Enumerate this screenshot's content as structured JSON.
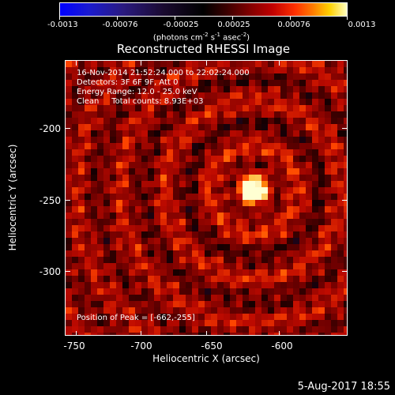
{
  "colorbar": {
    "tick_labels": [
      "-0.0013",
      "-0.00076",
      "-0.00025",
      "0.00025",
      "0.00076",
      "0.0013"
    ],
    "units_label_main": "(photons cm",
    "units_sup1": "-2",
    "units_mid1": " s",
    "units_sup2": "-1",
    "units_mid2": " asec",
    "units_sup3": "-2",
    "units_end": ")"
  },
  "title": "Reconstructed RHESSI Image",
  "info": {
    "time_range": "16-Nov-2014 21:52:24.000 to 22:02:24.000",
    "detectors": "Detectors: 3F 6F 9F, Att 0",
    "energy_range": "Energy Range: 12.0 - 25.0 keV",
    "clean_counts": "Clean     Total counts: 8.93E+03",
    "peak_position": "Position of Peak = [-662,-255]"
  },
  "x_axis": {
    "title": "Heliocentric X (arcsec)",
    "tick_labels": [
      "-750",
      "-700",
      "-650",
      "-600"
    ]
  },
  "y_axis": {
    "title": "Heliocentric Y (arcsec)",
    "tick_labels": [
      "-200",
      "-250",
      "-300"
    ]
  },
  "footer": {
    "timestamp": "5-Aug-2017 18:55"
  },
  "chart_data": {
    "type": "heatmap",
    "title": "Reconstructed RHESSI Image",
    "xlabel": "Heliocentric X (arcsec)",
    "ylabel": "Heliocentric Y (arcsec)",
    "xlim": [
      -757,
      -615
    ],
    "ylim": [
      -345,
      -175
    ],
    "x_ticks": [
      -750,
      -700,
      -650,
      -600
    ],
    "y_ticks": [
      -200,
      -250,
      -300
    ],
    "color_range": [
      -0.0013,
      0.0013
    ],
    "colorbar_ticks": [
      -0.0013,
      -0.00076,
      -0.00025,
      0.00025,
      0.00076,
      0.0013
    ],
    "colormap": "blue-black-red-yellow-white",
    "peak": {
      "x": -662,
      "y": -255
    },
    "grid": false
  },
  "colors": {
    "background": "#000000",
    "foreground": "#ffffff"
  }
}
